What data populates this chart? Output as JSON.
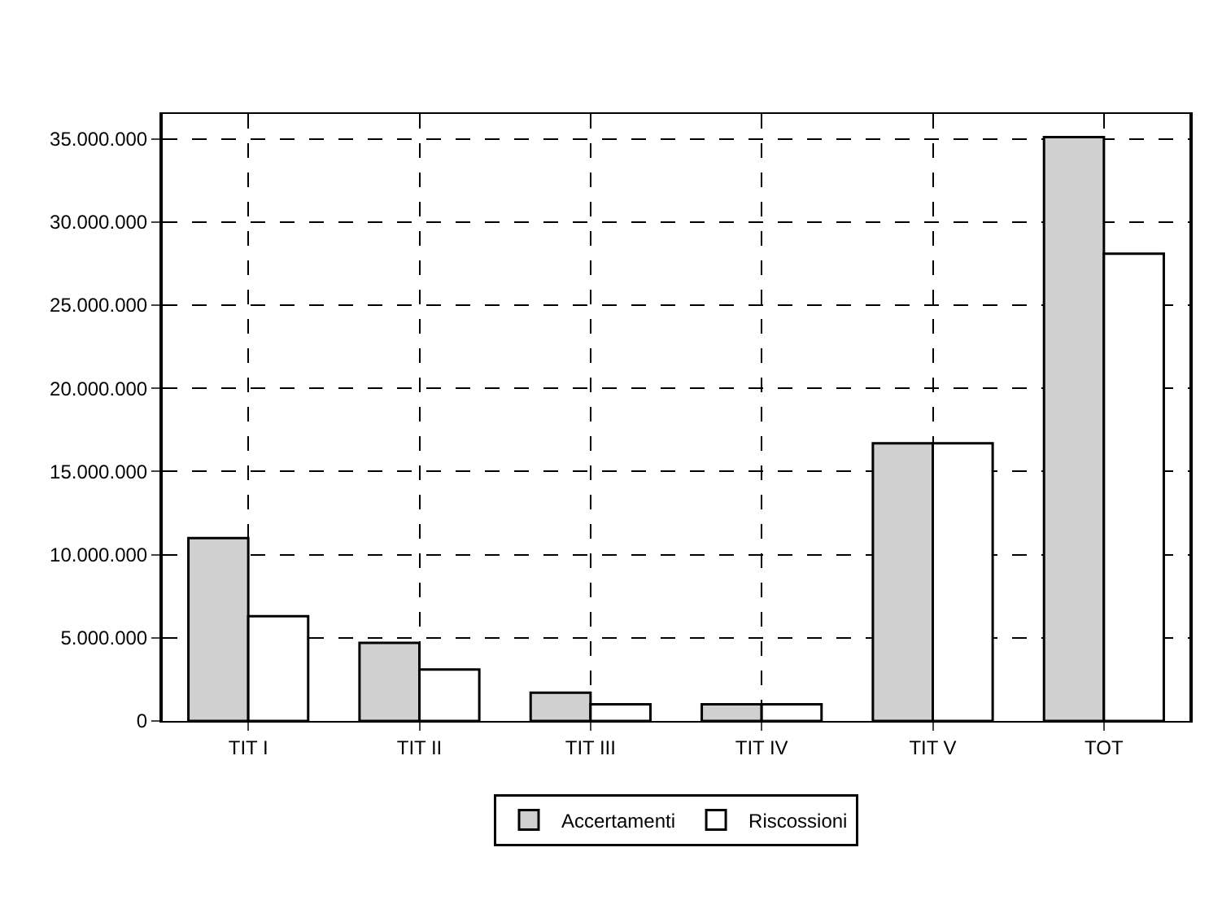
{
  "chart_data": {
    "type": "bar",
    "categories": [
      "TIT I",
      "TIT II",
      "TIT III",
      "TIT IV",
      "TIT V",
      "TOT"
    ],
    "series": [
      {
        "name": "Accertamenti",
        "color": "#d0d0d0",
        "values": [
          11000000,
          4700000,
          1700000,
          1000000,
          16700000,
          35100000
        ]
      },
      {
        "name": "Riscossioni",
        "color": "#ffffff",
        "values": [
          6300000,
          3100000,
          1000000,
          1000000,
          16700000,
          28100000
        ]
      }
    ],
    "ylim": [
      0,
      36500000
    ],
    "yticks": [
      {
        "value": 0,
        "label": "0"
      },
      {
        "value": 5000000,
        "label": "5.000.000"
      },
      {
        "value": 10000000,
        "label": "10.000.000"
      },
      {
        "value": 15000000,
        "label": "15.000.000"
      },
      {
        "value": 20000000,
        "label": "20.000.000"
      },
      {
        "value": 25000000,
        "label": "25.000.000"
      },
      {
        "value": 30000000,
        "label": "30.000.000"
      },
      {
        "value": 35000000,
        "label": "35.000.000"
      }
    ],
    "grid": true,
    "legend": "bottom"
  }
}
